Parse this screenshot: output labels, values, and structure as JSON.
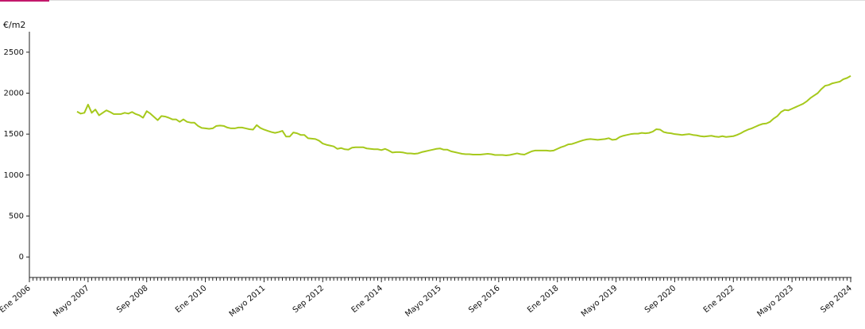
{
  "chart_data": {
    "type": "line",
    "y_axis_label": "€/m2",
    "categories": [
      "Ene 2006",
      null,
      null,
      null,
      null,
      null,
      null,
      null,
      null,
      null,
      null,
      null,
      null,
      null,
      null,
      null,
      "Mayo 2007",
      null,
      null,
      null,
      null,
      null,
      null,
      null,
      null,
      null,
      null,
      null,
      null,
      null,
      null,
      null,
      "Sep 2008",
      null,
      null,
      null,
      null,
      null,
      null,
      null,
      null,
      null,
      null,
      null,
      null,
      null,
      null,
      null,
      "Ene 2010",
      null,
      null,
      null,
      null,
      null,
      null,
      null,
      null,
      null,
      null,
      null,
      null,
      null,
      null,
      null,
      "Mayo 2011",
      null,
      null,
      null,
      null,
      null,
      null,
      null,
      null,
      null,
      null,
      null,
      null,
      null,
      null,
      null,
      "Sep 2012",
      null,
      null,
      null,
      null,
      null,
      null,
      null,
      null,
      null,
      null,
      null,
      null,
      null,
      null,
      null,
      "Ene 2014",
      null,
      null,
      null,
      null,
      null,
      null,
      null,
      null,
      null,
      null,
      null,
      null,
      null,
      null,
      null,
      "Mayo 2015",
      null,
      null,
      null,
      null,
      null,
      null,
      null,
      null,
      null,
      null,
      null,
      null,
      null,
      null,
      null,
      "Sep 2016",
      null,
      null,
      null,
      null,
      null,
      null,
      null,
      null,
      null,
      null,
      null,
      null,
      null,
      null,
      null,
      "Ene 2018",
      null,
      null,
      null,
      null,
      null,
      null,
      null,
      null,
      null,
      null,
      null,
      null,
      null,
      null,
      null,
      "Mayo 2019",
      null,
      null,
      null,
      null,
      null,
      null,
      null,
      null,
      null,
      null,
      null,
      null,
      null,
      null,
      null,
      "Sep 2020",
      null,
      null,
      null,
      null,
      null,
      null,
      null,
      null,
      null,
      null,
      null,
      null,
      null,
      null,
      null,
      "Ene 2022",
      null,
      null,
      null,
      null,
      null,
      null,
      null,
      null,
      null,
      null,
      null,
      null,
      null,
      null,
      null,
      "Mayo 2023",
      null,
      null,
      null,
      null,
      null,
      null,
      null,
      null,
      null,
      null,
      null,
      null,
      null,
      null,
      null,
      "Sep 2024"
    ],
    "values": [
      null,
      null,
      null,
      null,
      null,
      null,
      null,
      null,
      null,
      null,
      null,
      null,
      null,
      1775,
      1750,
      1760,
      1860,
      1760,
      1800,
      1730,
      1760,
      1790,
      1770,
      1745,
      1745,
      1745,
      1760,
      1750,
      1770,
      1745,
      1730,
      1700,
      1780,
      1750,
      1710,
      1670,
      1720,
      1715,
      1700,
      1680,
      1680,
      1650,
      1680,
      1650,
      1640,
      1640,
      1600,
      1575,
      1570,
      1565,
      1570,
      1600,
      1605,
      1600,
      1580,
      1570,
      1570,
      1580,
      1580,
      1570,
      1560,
      1555,
      1610,
      1575,
      1555,
      1540,
      1525,
      1515,
      1525,
      1540,
      1470,
      1470,
      1520,
      1510,
      1490,
      1490,
      1450,
      1445,
      1440,
      1420,
      1385,
      1370,
      1360,
      1350,
      1320,
      1330,
      1315,
      1310,
      1335,
      1340,
      1340,
      1340,
      1325,
      1320,
      1315,
      1315,
      1305,
      1320,
      1300,
      1275,
      1280,
      1280,
      1275,
      1265,
      1265,
      1260,
      1265,
      1280,
      1290,
      1300,
      1310,
      1320,
      1325,
      1310,
      1310,
      1290,
      1280,
      1270,
      1260,
      1255,
      1255,
      1250,
      1250,
      1250,
      1255,
      1260,
      1255,
      1245,
      1245,
      1245,
      1240,
      1245,
      1255,
      1265,
      1255,
      1250,
      1270,
      1290,
      1300,
      1300,
      1300,
      1300,
      1295,
      1300,
      1320,
      1340,
      1355,
      1375,
      1380,
      1395,
      1410,
      1425,
      1435,
      1440,
      1435,
      1430,
      1435,
      1440,
      1450,
      1430,
      1435,
      1465,
      1480,
      1490,
      1500,
      1505,
      1505,
      1515,
      1510,
      1515,
      1530,
      1560,
      1555,
      1525,
      1515,
      1510,
      1500,
      1495,
      1490,
      1495,
      1500,
      1490,
      1485,
      1475,
      1470,
      1475,
      1480,
      1470,
      1465,
      1475,
      1465,
      1470,
      1475,
      1490,
      1510,
      1535,
      1555,
      1570,
      1590,
      1610,
      1625,
      1630,
      1650,
      1690,
      1720,
      1770,
      1795,
      1790,
      1810,
      1830,
      1850,
      1870,
      1900,
      1940,
      1970,
      2000,
      2050,
      2090,
      2100,
      2120,
      2130,
      2140,
      2170,
      2185,
      2210
    ],
    "color": "#a6c91c",
    "ylim": [
      -250,
      2750
    ],
    "yticks": [
      0,
      500,
      1000,
      1500,
      2000,
      2500
    ]
  }
}
